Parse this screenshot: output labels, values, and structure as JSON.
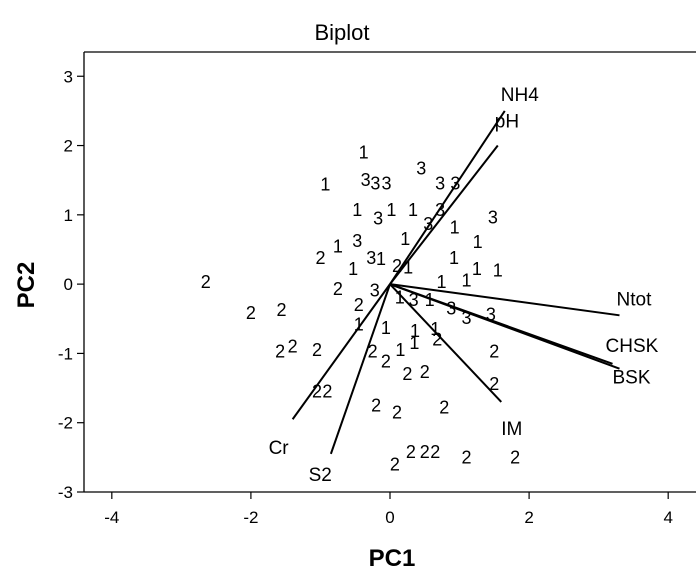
{
  "chart_data": {
    "type": "scatter",
    "title": "Biplot",
    "xlabel": "PC1",
    "ylabel": "PC2",
    "xlim": [
      -4.4,
      4.4
    ],
    "ylim": [
      -3,
      3.35
    ],
    "xticks": [
      -4,
      -2,
      0,
      2,
      4
    ],
    "yticks": [
      3,
      2,
      1,
      0,
      -1,
      -2,
      -3
    ],
    "grid": false,
    "points": [
      {
        "x": -2.65,
        "y": 0.03,
        "label": "2"
      },
      {
        "x": -0.38,
        "y": 1.9,
        "label": "1"
      },
      {
        "x": -0.93,
        "y": 1.44,
        "label": "1"
      },
      {
        "x": -0.35,
        "y": 1.5,
        "label": "3"
      },
      {
        "x": -0.21,
        "y": 1.45,
        "label": "3"
      },
      {
        "x": -0.05,
        "y": 1.45,
        "label": "3"
      },
      {
        "x": 0.45,
        "y": 1.67,
        "label": "3"
      },
      {
        "x": 0.72,
        "y": 1.45,
        "label": "3"
      },
      {
        "x": 0.94,
        "y": 1.45,
        "label": "3"
      },
      {
        "x": -0.47,
        "y": 1.07,
        "label": "1"
      },
      {
        "x": -0.17,
        "y": 0.95,
        "label": "3"
      },
      {
        "x": 0.02,
        "y": 1.07,
        "label": "1"
      },
      {
        "x": 0.33,
        "y": 1.07,
        "label": "1"
      },
      {
        "x": 0.72,
        "y": 1.07,
        "label": "3"
      },
      {
        "x": 0.55,
        "y": 0.87,
        "label": "3"
      },
      {
        "x": 0.93,
        "y": 0.82,
        "label": "1"
      },
      {
        "x": 1.48,
        "y": 0.96,
        "label": "3"
      },
      {
        "x": -0.47,
        "y": 0.62,
        "label": "3"
      },
      {
        "x": -0.75,
        "y": 0.54,
        "label": "1"
      },
      {
        "x": 0.22,
        "y": 0.65,
        "label": "1"
      },
      {
        "x": 1.26,
        "y": 0.61,
        "label": "1"
      },
      {
        "x": -1.0,
        "y": 0.38,
        "label": "2"
      },
      {
        "x": -0.53,
        "y": 0.22,
        "label": "1"
      },
      {
        "x": -0.27,
        "y": 0.38,
        "label": "3"
      },
      {
        "x": -0.13,
        "y": 0.36,
        "label": "1"
      },
      {
        "x": 0.1,
        "y": 0.26,
        "label": "2"
      },
      {
        "x": 0.26,
        "y": 0.24,
        "label": "1"
      },
      {
        "x": 0.92,
        "y": 0.38,
        "label": "1"
      },
      {
        "x": 1.25,
        "y": 0.22,
        "label": "1"
      },
      {
        "x": 1.55,
        "y": 0.2,
        "label": "1"
      },
      {
        "x": 0.74,
        "y": 0.03,
        "label": "1"
      },
      {
        "x": 1.1,
        "y": 0.05,
        "label": "1"
      },
      {
        "x": -0.75,
        "y": -0.07,
        "label": "2"
      },
      {
        "x": -0.22,
        "y": -0.09,
        "label": "3"
      },
      {
        "x": -0.45,
        "y": -0.3,
        "label": "2"
      },
      {
        "x": 0.14,
        "y": -0.19,
        "label": "1"
      },
      {
        "x": 0.34,
        "y": -0.23,
        "label": "3"
      },
      {
        "x": 0.57,
        "y": -0.23,
        "label": "1"
      },
      {
        "x": 0.88,
        "y": -0.35,
        "label": "3"
      },
      {
        "x": 1.1,
        "y": -0.49,
        "label": "3"
      },
      {
        "x": 1.45,
        "y": -0.44,
        "label": "3"
      },
      {
        "x": -2.0,
        "y": -0.42,
        "label": "2"
      },
      {
        "x": -1.56,
        "y": -0.37,
        "label": "2"
      },
      {
        "x": -0.45,
        "y": -0.58,
        "label": "1"
      },
      {
        "x": -0.06,
        "y": -0.63,
        "label": "1"
      },
      {
        "x": 0.36,
        "y": -0.68,
        "label": "1"
      },
      {
        "x": 0.65,
        "y": -0.65,
        "label": "1"
      },
      {
        "x": 0.68,
        "y": -0.8,
        "label": "2"
      },
      {
        "x": -1.58,
        "y": -0.97,
        "label": "2"
      },
      {
        "x": -1.4,
        "y": -0.9,
        "label": "2"
      },
      {
        "x": -1.05,
        "y": -0.95,
        "label": "2"
      },
      {
        "x": -0.25,
        "y": -0.97,
        "label": "2"
      },
      {
        "x": 0.15,
        "y": -0.95,
        "label": "1"
      },
      {
        "x": 0.35,
        "y": -0.85,
        "label": "1"
      },
      {
        "x": 1.5,
        "y": -0.97,
        "label": "2"
      },
      {
        "x": -0.06,
        "y": -1.12,
        "label": "2"
      },
      {
        "x": 0.25,
        "y": -1.3,
        "label": "2"
      },
      {
        "x": 0.5,
        "y": -1.27,
        "label": "2"
      },
      {
        "x": 1.5,
        "y": -1.44,
        "label": "2"
      },
      {
        "x": -1.05,
        "y": -1.55,
        "label": "2"
      },
      {
        "x": -0.9,
        "y": -1.55,
        "label": "2"
      },
      {
        "x": -0.2,
        "y": -1.75,
        "label": "2"
      },
      {
        "x": 0.1,
        "y": -1.85,
        "label": "2"
      },
      {
        "x": 0.78,
        "y": -1.78,
        "label": "2"
      },
      {
        "x": 0.3,
        "y": -2.42,
        "label": "2"
      },
      {
        "x": 0.5,
        "y": -2.42,
        "label": "2"
      },
      {
        "x": 0.65,
        "y": -2.42,
        "label": "2"
      },
      {
        "x": 1.1,
        "y": -2.5,
        "label": "2"
      },
      {
        "x": 1.8,
        "y": -2.5,
        "label": "2"
      },
      {
        "x": 0.07,
        "y": -2.6,
        "label": "2"
      }
    ],
    "vectors": [
      {
        "name": "NH4",
        "x": 1.65,
        "y": 2.5
      },
      {
        "name": "pH",
        "x": 1.55,
        "y": 2.0
      },
      {
        "name": "Ntot",
        "x": 3.3,
        "y": -0.45
      },
      {
        "name": "CHSK",
        "x": 3.2,
        "y": -1.15
      },
      {
        "name": "BSK",
        "x": 3.3,
        "y": -1.22
      },
      {
        "name": "IM",
        "x": 1.6,
        "y": -1.7
      },
      {
        "name": "Cr",
        "x": -1.4,
        "y": -1.95
      },
      {
        "name": "S2",
        "x": -0.85,
        "y": -2.45
      }
    ]
  }
}
